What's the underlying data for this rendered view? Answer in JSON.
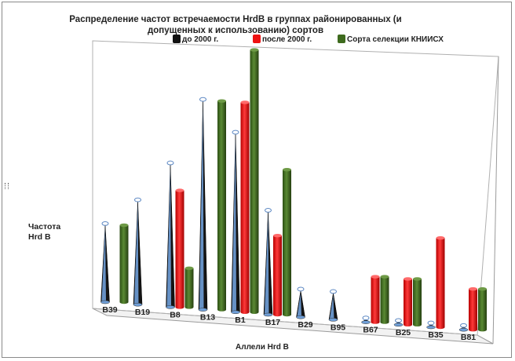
{
  "chart_data": {
    "type": "bar",
    "title": "Распределение частот встречаемости HrdB в группах районированных   (и допущенных к использованию)  сортов",
    "xlabel": "Аллели Hrd B",
    "ylabel": "Частота Hrd B",
    "categories": [
      "B39",
      "B19",
      "B8",
      "B13",
      "B1",
      "B17",
      "B29",
      "B95",
      "B67",
      "B25",
      "B35",
      "B81"
    ],
    "series": [
      {
        "name": "до 2000 г.",
        "shape": "cone",
        "values": [
          3,
          4,
          5.5,
          8,
          6.8,
          3.9,
          1,
          1,
          0.1,
          0.1,
          0.1,
          0.1
        ]
      },
      {
        "name": "после 2000 г.",
        "shape": "cylinder",
        "values": [
          0,
          0,
          4.5,
          0,
          8,
          3,
          0,
          0,
          1.7,
          1.7,
          3.3,
          1.5
        ]
      },
      {
        "name": "Сорта селекции КНИИСХ",
        "shape": "cylinder",
        "values": [
          3,
          0,
          1.5,
          8,
          10,
          5.5,
          0,
          0,
          1.7,
          1.7,
          0,
          1.5
        ]
      }
    ],
    "colors": [
      "#111111",
      "#ee1111",
      "#3e6b1e"
    ],
    "legend_position": "top",
    "grid": false
  }
}
